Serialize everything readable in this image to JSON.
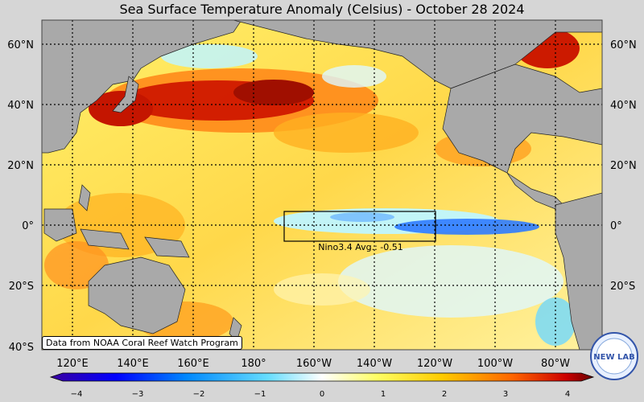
{
  "title": "Sea Surface Temperature Anomaly (Celsius) - October 28 2024",
  "lat_labels": [
    "60°N",
    "40°N",
    "20°N",
    "0°",
    "20°S",
    "40°S"
  ],
  "lon_labels": [
    "120°E",
    "140°E",
    "160°E",
    "180°",
    "160°W",
    "140°W",
    "120°W",
    "100°W",
    "80°W"
  ],
  "nino_box": {
    "label": "Nino3.4 Avg.: -0.51",
    "region": "Nino3.4",
    "avg_anomaly": -0.51
  },
  "source": "Data from NOAA Coral Reef Watch Program",
  "logo_text": "NEW LAB",
  "colorbar": {
    "ticks": [
      "−4",
      "−3",
      "−2",
      "−1",
      "0",
      "1",
      "2",
      "3",
      "4"
    ],
    "min": -4,
    "max": 4,
    "colors": [
      "#3a00a0",
      "#0000ff",
      "#0088ff",
      "#66ddff",
      "#ffffff",
      "#ffff66",
      "#ffcc00",
      "#ff6600",
      "#cc0000",
      "#660000"
    ]
  },
  "map_colors": {
    "land": "#a9a9a9",
    "ocean_base": "#ffe84a",
    "warm": "#ff9a1a",
    "hot": "#cc1a00",
    "cool": "#bff5ff",
    "cold": "#2f7bff"
  }
}
